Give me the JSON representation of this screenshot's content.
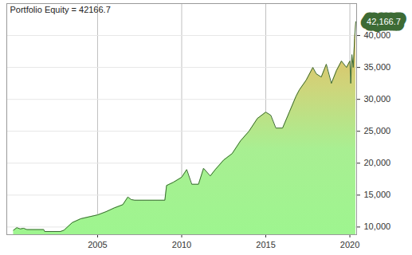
{
  "chart_data": {
    "type": "area",
    "title": "Portfolio Equity = 42166.7",
    "x": [
      2000.0,
      2000.2,
      2000.4,
      2000.6,
      2000.8,
      2001.8,
      2001.85,
      2002.8,
      2003.0,
      2003.5,
      2004.0,
      2004.5,
      2005.0,
      2005.5,
      2006.0,
      2006.5,
      2006.8,
      2007.0,
      2007.2,
      2009.0,
      2009.1,
      2009.5,
      2010.0,
      2010.3,
      2010.6,
      2011.0,
      2011.3,
      2011.7,
      2012.0,
      2012.5,
      2013.0,
      2013.5,
      2014.0,
      2014.5,
      2015.0,
      2015.3,
      2015.6,
      2016.0,
      2016.4,
      2016.8,
      2017.0,
      2017.4,
      2017.8,
      2018.0,
      2018.3,
      2018.6,
      2018.9,
      2019.2,
      2019.5,
      2019.8,
      2019.9,
      2020.0,
      2020.05,
      2020.12,
      2020.2,
      2020.28,
      2020.35
    ],
    "values": [
      9500,
      9900,
      9700,
      9800,
      9600,
      9600,
      9300,
      9300,
      9500,
      10700,
      11300,
      11600,
      11900,
      12400,
      13000,
      13500,
      14700,
      14300,
      14200,
      14200,
      16500,
      17000,
      17800,
      19000,
      16700,
      16700,
      19200,
      18000,
      19000,
      20500,
      21500,
      23500,
      25000,
      27000,
      28000,
      27500,
      25500,
      25500,
      28000,
      30500,
      31500,
      33000,
      35000,
      34000,
      33500,
      35500,
      32500,
      34500,
      36000,
      35000,
      35500,
      36000,
      32500,
      37000,
      35000,
      39500,
      42166.7
    ],
    "color": "#3d6b35",
    "xlim": [
      1999.6,
      2020.4
    ],
    "xticks": [
      2005,
      2010,
      2015,
      2020
    ],
    "ylim": [
      8800,
      45000
    ],
    "yticks": [
      {
        "value": 10000,
        "label": "10,000"
      },
      {
        "value": 15000,
        "label": "15,000"
      },
      {
        "value": 20000,
        "label": "20,000"
      },
      {
        "value": 25000,
        "label": "25,000"
      },
      {
        "value": 30000,
        "label": "30,000"
      },
      {
        "value": 35000,
        "label": "35,000"
      },
      {
        "value": 40000,
        "label": "40,000"
      }
    ],
    "end_label": {
      "value": 42166.7,
      "label": "42,166.7"
    },
    "grid": true
  }
}
